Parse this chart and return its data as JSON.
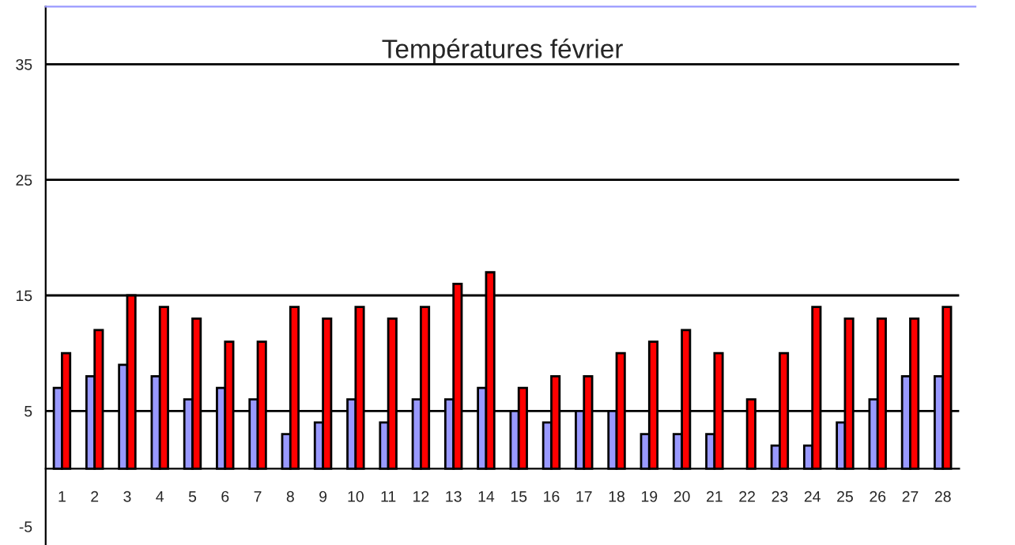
{
  "chart_data": {
    "type": "bar",
    "title": "Températures février",
    "categories": [
      "1",
      "2",
      "3",
      "4",
      "5",
      "6",
      "7",
      "8",
      "9",
      "10",
      "11",
      "12",
      "13",
      "14",
      "15",
      "16",
      "17",
      "18",
      "19",
      "20",
      "21",
      "22",
      "23",
      "24",
      "25",
      "26",
      "27",
      "28"
    ],
    "series": [
      {
        "color": "#9999ff",
        "values": [
          7,
          8,
          9,
          8,
          6,
          7,
          6,
          3,
          4,
          6,
          4,
          6,
          6,
          7,
          5,
          4,
          5,
          5,
          3,
          3,
          3,
          null,
          2,
          2,
          4,
          6,
          8,
          8
        ]
      },
      {
        "color": "#ff0000",
        "values": [
          10,
          12,
          15,
          14,
          13,
          11,
          11,
          14,
          13,
          14,
          13,
          14,
          16,
          17,
          7,
          8,
          8,
          10,
          11,
          12,
          10,
          6,
          10,
          14,
          13,
          13,
          13,
          14
        ]
      }
    ],
    "ylim": [
      -6.6,
      40
    ],
    "yticks": [
      -5,
      5,
      15,
      25,
      35
    ],
    "grid": "y",
    "legend": false
  }
}
